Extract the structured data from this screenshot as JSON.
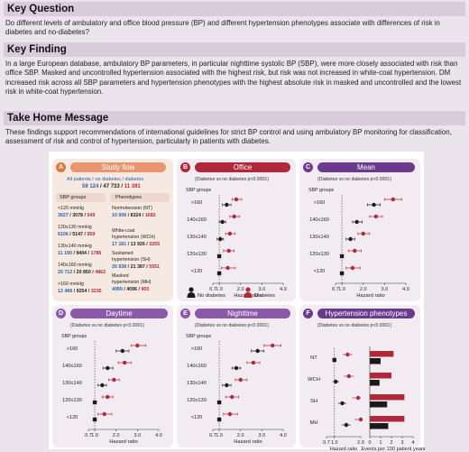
{
  "sections": {
    "key_question": {
      "heading": "Key Question",
      "text": "Do different levels of ambulatory and office blood pressure (BP) and different hypertension phenotypes associate with differences of risk in diabetes and no-diabetes?"
    },
    "key_finding": {
      "heading": "Key Finding",
      "text": "In a large European database, ambulatory BP parameters, in particular nighttime systolic BP (SBP), were more closely associated with risk than office SBP. Masked and uncontrolled hypertension associated with the highest risk, but risk was not increased in white-coat hypertension. DM increased risk across all SBP parameters and hypertension phenotypes with the highest absolute risk in masked and uncontrolled and the lowest risk in white-coat hypertension."
    },
    "take_home": {
      "heading": "Take Home Message",
      "text": "These findings support recommendations of international guidelines for strict BP control and using ambulatory BP monitoring for classification, assessment of risk and control of hypertension, particularly in patients with diabetes."
    }
  },
  "figure": {
    "colors": {
      "no_diabetes": "#1a1a1a",
      "diabetes": "#b0283a",
      "blue_text": "#2f5fa3"
    },
    "flow": {
      "letter": "A",
      "title": "Study flow",
      "top_line": "All patients / no diabetes / diabetes",
      "top_all": "59 124",
      "top_nd": "47 733",
      "top_d": "11 391",
      "col_sbp": "SBP groups",
      "col_pheno": "Phenotypes",
      "sbp": [
        {
          "label": "<120 mmHg",
          "all": "3627",
          "nd": "3078",
          "d": "549"
        },
        {
          "label": "120≤130 mmHg",
          "all": "6106",
          "nd": "5147",
          "d": "959"
        },
        {
          "label": "130≤140 mmHg",
          "all": "11 190",
          "nd": "9404",
          "d": "1786"
        },
        {
          "label": "140≤160 mmHg",
          "all": "25 712",
          "nd": "20 850",
          "d": "4862"
        },
        {
          "label": ">160 mmHg",
          "all": "12 489",
          "nd": "9254",
          "d": "3235"
        }
      ],
      "pheno": [
        {
          "label1": "Normotension (NT)",
          "label2": "",
          "all": "10 006",
          "nd": "8324",
          "d": "1682"
        },
        {
          "label1": "White-coat",
          "label2": "hypertension (WCH)",
          "all": "17 181",
          "nd": "13 926",
          "d": "3255"
        },
        {
          "label1": "Sustained",
          "label2": "hypertension (SH)",
          "all": "26 938",
          "nd": "21 387",
          "d": "5551"
        },
        {
          "label1": "Masked",
          "label2": "hypertension (MH)",
          "all": "4999",
          "nd": "4096",
          "d": "903"
        }
      ]
    },
    "panels": [
      {
        "id": "office",
        "letter": "B",
        "title": "Office",
        "subtitle": "(Diabetes vs no diabetes p<0.0001)",
        "color": "#b0283a"
      },
      {
        "id": "mean",
        "letter": "C",
        "title": "Mean",
        "subtitle": "(Diabetes vs no diabetes p<0.0001)",
        "color": "#6a3a8c"
      },
      {
        "id": "daytime",
        "letter": "D",
        "title": "Daytime",
        "subtitle": "(Diabetes vs no diabetes p<0.0001)",
        "color": "#8a5aa8"
      },
      {
        "id": "nighttime",
        "letter": "E",
        "title": "Nighttime",
        "subtitle": "(Diabetes vs no diabetes p<0.0001)",
        "color": "#8a5aa8"
      },
      {
        "id": "phenotypes",
        "letter": "F",
        "title": "Hypertension phenotypes",
        "subtitle": "(Diabetes vs no diabetes p<0.0001)",
        "color": "#6a3a8c"
      }
    ],
    "sbp_groups_label": "SBP groups",
    "sbp_groups": [
      ">160",
      "140≤160",
      "130≤140",
      "120≤130",
      "<120"
    ],
    "pheno_groups": [
      "NT",
      "WCH",
      "SH",
      "MH"
    ],
    "hr_ticks": [
      "0.7",
      "1.0",
      "2.0",
      "3.0",
      "4.0"
    ],
    "hr_axis_label": "Hazard ratio",
    "events_axis_label": "Events per 100 patient years",
    "events_ticks": [
      "0",
      "1",
      "2",
      "3",
      "4"
    ],
    "legend": {
      "no_diabetes": "No diabetes",
      "diabetes": "Diabetes"
    }
  },
  "chart_data": [
    {
      "type": "scatter",
      "title": "Office",
      "ylabel": "SBP groups",
      "xlabel": "Hazard ratio",
      "categories": [
        ">160",
        "140≤160",
        "130≤140",
        "120≤130",
        "<120"
      ],
      "series": [
        {
          "name": "No diabetes",
          "values": [
            1.35,
            1.15,
            1.05,
            1.0,
            1.0
          ],
          "ci": [
            [
              1.15,
              1.55
            ],
            [
              1.0,
              1.3
            ],
            [
              0.9,
              1.2
            ],
            null,
            null
          ]
        },
        {
          "name": "Diabetes",
          "values": [
            1.8,
            1.7,
            1.5,
            1.45,
            1.4
          ],
          "ci": [
            [
              1.6,
              2.05
            ],
            [
              1.5,
              1.95
            ],
            [
              1.3,
              1.75
            ],
            [
              1.2,
              1.7
            ],
            [
              1.1,
              1.75
            ]
          ]
        }
      ],
      "xlim": [
        0.7,
        4.0
      ]
    },
    {
      "type": "scatter",
      "title": "Mean",
      "ylabel": "SBP groups",
      "xlabel": "Hazard ratio",
      "categories": [
        ">160",
        "140≤160",
        "130≤140",
        "120≤130",
        "<120"
      ],
      "series": [
        {
          "name": "No diabetes",
          "values": [
            2.5,
            1.7,
            1.4,
            1.0,
            1.0
          ],
          "ci": [
            [
              2.2,
              2.8
            ],
            [
              1.5,
              1.95
            ],
            [
              1.2,
              1.6
            ],
            null,
            null
          ]
        },
        {
          "name": "Diabetes",
          "values": [
            3.4,
            2.6,
            2.0,
            1.6,
            1.5
          ],
          "ci": [
            [
              3.0,
              3.8
            ],
            [
              2.3,
              2.9
            ],
            [
              1.75,
              2.3
            ],
            [
              1.3,
              1.9
            ],
            [
              1.2,
              1.85
            ]
          ]
        }
      ],
      "xlim": [
        0.7,
        4.0
      ]
    },
    {
      "type": "scatter",
      "title": "Daytime",
      "ylabel": "SBP groups",
      "xlabel": "Hazard ratio",
      "categories": [
        ">160",
        "140≤160",
        "130≤140",
        "120≤130",
        "<120"
      ],
      "series": [
        {
          "name": "No diabetes",
          "values": [
            2.3,
            1.6,
            1.35,
            1.0,
            1.0
          ],
          "ci": [
            [
              2.0,
              2.6
            ],
            [
              1.4,
              1.85
            ],
            [
              1.15,
              1.55
            ],
            null,
            null
          ]
        },
        {
          "name": "Diabetes",
          "values": [
            3.0,
            2.4,
            1.9,
            1.6,
            1.45
          ],
          "ci": [
            [
              2.7,
              3.4
            ],
            [
              2.1,
              2.7
            ],
            [
              1.65,
              2.15
            ],
            [
              1.35,
              1.85
            ],
            [
              1.15,
              1.8
            ]
          ]
        }
      ],
      "xlim": [
        0.7,
        4.0
      ]
    },
    {
      "type": "scatter",
      "title": "Nighttime",
      "ylabel": "SBP groups",
      "xlabel": "Hazard ratio",
      "categories": [
        ">160",
        "140≤160",
        "130≤140",
        "120≤130",
        "<120"
      ],
      "series": [
        {
          "name": "No diabetes",
          "values": [
            2.8,
            1.8,
            1.35,
            1.0,
            1.0
          ],
          "ci": [
            [
              2.5,
              3.1
            ],
            [
              1.6,
              2.0
            ],
            [
              1.15,
              1.55
            ],
            null,
            null
          ]
        },
        {
          "name": "Diabetes",
          "values": [
            3.5,
            2.6,
            2.0,
            1.6,
            1.5
          ],
          "ci": [
            [
              3.1,
              3.9
            ],
            [
              2.3,
              2.9
            ],
            [
              1.75,
              2.3
            ],
            [
              1.3,
              1.9
            ],
            [
              1.2,
              1.85
            ]
          ]
        }
      ],
      "xlim": [
        0.7,
        4.0
      ]
    },
    {
      "type": "scatter",
      "title": "Hypertension phenotypes",
      "xlabel": "Hazard ratio",
      "categories": [
        "NT",
        "WCH",
        "SH",
        "MH"
      ],
      "series": [
        {
          "name": "No diabetes",
          "values": [
            1.0,
            1.05,
            1.3,
            1.45
          ]
        },
        {
          "name": "Diabetes",
          "values": [
            1.5,
            1.55,
            1.9,
            2.0
          ]
        }
      ],
      "xlim": [
        0.7,
        2.0
      ]
    },
    {
      "type": "bar",
      "title": "Hypertension phenotypes",
      "xlabel": "Events per 100 patient years",
      "categories": [
        "NT",
        "WCH",
        "SH",
        "MH"
      ],
      "series": [
        {
          "name": "No diabetes",
          "values": [
            1.0,
            0.9,
            1.6,
            1.7
          ]
        },
        {
          "name": "Diabetes",
          "values": [
            2.2,
            2.0,
            3.2,
            3.2
          ]
        }
      ],
      "xlim": [
        0,
        4
      ]
    }
  ]
}
